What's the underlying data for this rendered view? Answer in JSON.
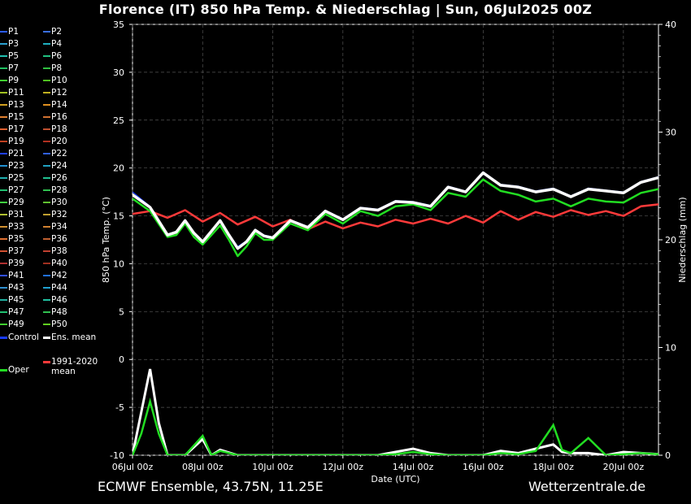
{
  "title": "Florence  (IT)  850 hPa Temp. & Niederschlag | Sun, 06Jul2025 00Z",
  "footer_left": "ECMWF Ensemble, 43.75N, 11.25E",
  "footer_right": "Wetterzentrale.de",
  "legend": {
    "members": [
      "P1",
      "P2",
      "P3",
      "P4",
      "P5",
      "P6",
      "P7",
      "P8",
      "P9",
      "P10",
      "P11",
      "P12",
      "P13",
      "P14",
      "P15",
      "P16",
      "P17",
      "P18",
      "P19",
      "P20",
      "P21",
      "P22",
      "P23",
      "P24",
      "P25",
      "P26",
      "P27",
      "P28",
      "P29",
      "P30",
      "P31",
      "P32",
      "P33",
      "P34",
      "P35",
      "P36",
      "P37",
      "P38",
      "P39",
      "P40",
      "P41",
      "P42",
      "P43",
      "P44",
      "P45",
      "P46",
      "P47",
      "P48",
      "P49",
      "P50"
    ],
    "member_colors": [
      "#2b5cff",
      "#3a6fe0",
      "#2aa0d0",
      "#1fb0c0",
      "#20c0b0",
      "#20c080",
      "#20c060",
      "#30c040",
      "#40d030",
      "#50c020",
      "#a0c020",
      "#c0b020",
      "#d0a020",
      "#e09020",
      "#e08030",
      "#d07030",
      "#e06030",
      "#c05030",
      "#c04020",
      "#b03020",
      "#2040ff",
      "#3060e0",
      "#2090d0",
      "#20a0c0",
      "#20b0b0",
      "#20c090",
      "#20c070",
      "#30c050",
      "#40d040",
      "#60c030",
      "#b0c030",
      "#c0a030",
      "#d09030",
      "#d08030",
      "#e07030",
      "#c06030",
      "#d05030",
      "#c04030",
      "#b03030",
      "#a03020",
      "#3050ff",
      "#2070e0",
      "#3090d0",
      "#20a0d0",
      "#20b0a0",
      "#20c0a0",
      "#20c070",
      "#30c050",
      "#40d030",
      "#60d020"
    ],
    "control": "Control",
    "ens_mean": "Ens. mean",
    "clim_mean": "1991-2020 mean",
    "oper": "Oper"
  },
  "colors": {
    "control": "#1a3cff",
    "ens_mean": "#ffffff",
    "clim": "#ff3a3a",
    "oper": "#22dd22",
    "background": "#000000"
  },
  "chart_data": {
    "type": "line",
    "xlabel": "Date (UTC)",
    "ylabel": "850 hPa Temp. (°C)",
    "y2label": "Niederschlag (mm)",
    "ylim": [
      -10,
      35
    ],
    "y2lim": [
      0,
      40
    ],
    "yticks": [
      -10,
      -5,
      0,
      5,
      10,
      15,
      20,
      25,
      30,
      35
    ],
    "y2ticks": [
      0,
      10,
      20,
      30,
      40
    ],
    "xlim_days": [
      0,
      15
    ],
    "xticks": [
      {
        "day": 0,
        "label": "06Jul 00z"
      },
      {
        "day": 2,
        "label": "08Jul 00z"
      },
      {
        "day": 4,
        "label": "10Jul 00z"
      },
      {
        "day": 6,
        "label": "12Jul 00z"
      },
      {
        "day": 8,
        "label": "14Jul 00z"
      },
      {
        "day": 10,
        "label": "16Jul 00z"
      },
      {
        "day": 12,
        "label": "18Jul 00z"
      },
      {
        "day": 14,
        "label": "20Jul 00z"
      }
    ],
    "grid": true,
    "legend_position": "left, outside plot",
    "series": [
      {
        "name": "Ens. mean",
        "x": [
          0,
          0.5,
          1,
          1.25,
          1.5,
          1.75,
          2,
          2.25,
          2.5,
          2.75,
          3,
          3.25,
          3.5,
          3.75,
          4,
          4.5,
          5,
          5.5,
          6,
          6.5,
          7,
          7.5,
          8,
          8.5,
          9,
          9.5,
          10,
          10.5,
          11,
          11.5,
          12,
          12.5,
          13,
          13.5,
          14,
          14.5,
          15
        ],
        "y": [
          17.2,
          15.9,
          13.0,
          13.3,
          14.5,
          13.2,
          12.3,
          13.4,
          14.5,
          13.0,
          11.6,
          12.3,
          13.5,
          12.9,
          12.7,
          14.5,
          13.8,
          15.5,
          14.6,
          15.8,
          15.6,
          16.5,
          16.4,
          16.0,
          18.0,
          17.5,
          19.5,
          18.2,
          18.0,
          17.5,
          17.8,
          17.0,
          17.8,
          17.6,
          17.4,
          18.5,
          19.0
        ]
      },
      {
        "name": "Oper",
        "x": [
          0,
          0.5,
          1,
          1.25,
          1.5,
          1.75,
          2,
          2.25,
          2.5,
          2.75,
          3,
          3.25,
          3.5,
          3.75,
          4,
          4.5,
          5,
          5.5,
          6,
          6.5,
          7,
          7.5,
          8,
          8.5,
          9,
          9.5,
          10,
          10.5,
          11,
          11.5,
          12,
          12.5,
          13,
          13.5,
          14,
          14.5,
          15
        ],
        "y": [
          16.8,
          15.5,
          12.8,
          13.0,
          14.2,
          12.8,
          12.0,
          13.0,
          14.0,
          12.5,
          10.8,
          11.8,
          13.2,
          12.5,
          12.5,
          14.2,
          13.5,
          15.2,
          14.2,
          15.5,
          15.0,
          16.0,
          16.2,
          15.6,
          17.4,
          17.0,
          18.8,
          17.6,
          17.2,
          16.5,
          16.8,
          16.0,
          16.8,
          16.5,
          16.4,
          17.4,
          17.8
        ]
      },
      {
        "name": "Control",
        "x": [
          0,
          0.5,
          1,
          1.25,
          1.5,
          1.75,
          2,
          2.25,
          2.5,
          2.75,
          3,
          3.25,
          3.5,
          3.75,
          4,
          4.5,
          5,
          5.5,
          6,
          6.5,
          7,
          7.5,
          8,
          8.5,
          9,
          9.5,
          10,
          10.5,
          11,
          11.5,
          12,
          12.5,
          13,
          13.5,
          14,
          14.5,
          15
        ],
        "y": [
          17.5,
          16.0,
          13.1,
          13.4,
          14.6,
          13.3,
          12.4,
          13.5,
          14.6,
          13.1,
          11.8,
          12.4,
          13.6,
          13.0,
          12.8,
          14.6,
          13.9,
          15.6,
          14.7,
          15.9,
          15.7,
          16.6,
          16.5,
          16.1,
          18.1,
          17.6,
          19.6,
          18.3,
          18.1,
          17.6,
          17.9,
          17.1,
          17.9,
          17.7,
          17.5,
          18.6,
          19.1
        ]
      },
      {
        "name": "1991-2020 mean",
        "x": [
          0,
          0.5,
          1,
          1.5,
          2,
          2.5,
          3,
          3.5,
          4,
          4.5,
          5,
          5.5,
          6,
          6.5,
          7,
          7.5,
          8,
          8.5,
          9,
          9.5,
          10,
          10.5,
          11,
          11.5,
          12,
          12.5,
          13,
          13.5,
          14,
          14.5,
          15
        ],
        "y": [
          15.2,
          15.5,
          14.8,
          15.6,
          14.4,
          15.3,
          14.1,
          14.9,
          13.9,
          14.6,
          13.6,
          14.4,
          13.7,
          14.3,
          13.9,
          14.6,
          14.2,
          14.7,
          14.2,
          15.0,
          14.3,
          15.5,
          14.6,
          15.4,
          14.9,
          15.6,
          15.1,
          15.5,
          15.0,
          16.0,
          16.2
        ]
      }
    ],
    "precip_mean": {
      "x": [
        0,
        0.25,
        0.5,
        0.75,
        1,
        1.5,
        2,
        2.25,
        2.5,
        3,
        4,
        5,
        6,
        7,
        7.5,
        8,
        8.5,
        9,
        10,
        10.5,
        11,
        11.5,
        12,
        12.25,
        12.5,
        13,
        13.5,
        14,
        14.5,
        15
      ],
      "y": [
        0,
        4,
        8,
        3,
        0,
        0,
        1.5,
        0,
        0.5,
        0,
        0,
        0,
        0,
        0,
        0.3,
        0.6,
        0.2,
        0,
        0,
        0.4,
        0.2,
        0.6,
        1.0,
        0.3,
        0.2,
        0.2,
        0,
        0.3,
        0.2,
        0.1
      ]
    },
    "precip_oper": {
      "x": [
        0,
        0.25,
        0.5,
        0.75,
        1,
        1.5,
        2,
        2.25,
        2.5,
        3,
        4,
        5,
        6,
        7,
        7.5,
        8,
        8.5,
        9,
        10,
        10.5,
        11,
        11.5,
        12,
        12.25,
        12.5,
        13,
        13.5,
        14,
        14.5,
        15
      ],
      "y": [
        0,
        2,
        5,
        2,
        0,
        0,
        1.8,
        0,
        0.4,
        0,
        0,
        0,
        0,
        0,
        0.1,
        0.3,
        0.1,
        0,
        0,
        0.2,
        0.1,
        0.4,
        2.8,
        0.5,
        0.2,
        1.6,
        0,
        0.1,
        0.2,
        0.1
      ]
    }
  }
}
